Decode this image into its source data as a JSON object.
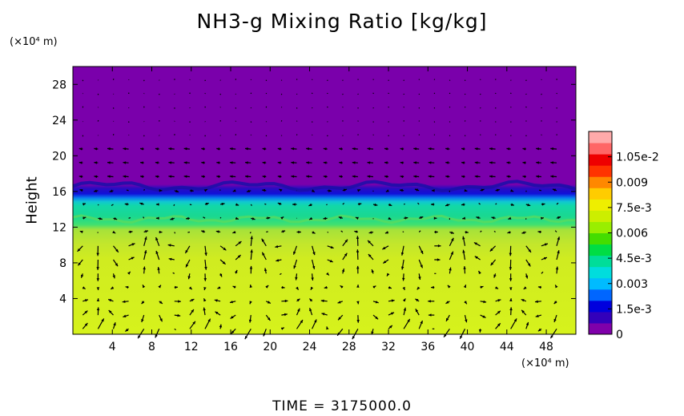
{
  "chart_data": {
    "type": "heatmap",
    "title": "NH3-g Mixing Ratio [kg/kg]",
    "ylabel": "Height",
    "xunit": "(×10⁴ m)",
    "yunit": "(×10⁴ m)",
    "x_ticks": [
      4,
      8,
      12,
      16,
      20,
      24,
      28,
      32,
      36,
      40,
      44,
      48
    ],
    "y_ticks": [
      4,
      8,
      12,
      16,
      20,
      24,
      28
    ],
    "xlim": [
      0,
      51
    ],
    "ylim": [
      0,
      30
    ],
    "colorbar": {
      "labels": [
        "1.05e-2",
        "0.009",
        "7.5e-3",
        "0.006",
        "4.5e-3",
        "0.003",
        "1.5e-3",
        "0"
      ],
      "values": [
        0.0105,
        0.009,
        0.0075,
        0.006,
        0.0045,
        0.003,
        0.0015,
        0
      ],
      "vmin": 0,
      "vmax": 0.012,
      "colors": [
        "#7f00aa",
        "#3300bb",
        "#0000dd",
        "#0066ff",
        "#00bbff",
        "#00dddd",
        "#00dd99",
        "#00dd44",
        "#44dd00",
        "#99ee00",
        "#ccee00",
        "#eeee00",
        "#ffcc00",
        "#ff8800",
        "#ff3300",
        "#ee0000",
        "#ff6666",
        "#ffaaaa"
      ]
    },
    "layers": [
      {
        "name": "upper",
        "y_range": [
          17,
          30
        ],
        "value": 0.0,
        "color": "#7a00ab"
      },
      {
        "name": "transition",
        "y_range": [
          16,
          17
        ],
        "value": 0.0015,
        "color": "#1515c8"
      },
      {
        "name": "middle",
        "y_range": [
          13,
          16
        ],
        "value": 0.0048,
        "color": "#15d8a0"
      },
      {
        "name": "lower",
        "y_range": [
          0,
          13
        ],
        "value": 0.0072,
        "color": "#d2ef1c"
      }
    ],
    "vectors": "wind field arrows"
  },
  "time_label": "TIME = 3175000.0"
}
